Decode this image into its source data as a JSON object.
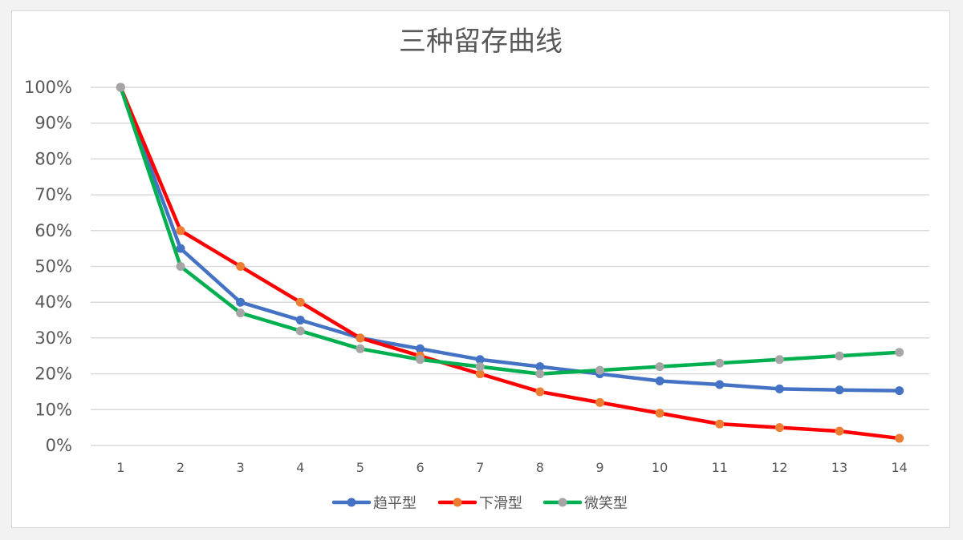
{
  "chart_data": {
    "type": "line",
    "title": "三种留存曲线",
    "xlabel": "",
    "ylabel": "",
    "x": [
      "1",
      "2",
      "3",
      "4",
      "5",
      "6",
      "7",
      "8",
      "9",
      "10",
      "11",
      "12",
      "13",
      "14"
    ],
    "ylim": [
      0,
      1
    ],
    "yticks": [
      "0%",
      "10%",
      "20%",
      "30%",
      "40%",
      "50%",
      "60%",
      "70%",
      "80%",
      "90%",
      "100%"
    ],
    "grid": true,
    "legend": "bottom",
    "series": [
      {
        "name": "趋平型",
        "line_color": "#4472c4",
        "marker_color": "#4472c4",
        "values": [
          1.0,
          0.55,
          0.4,
          0.35,
          0.3,
          0.27,
          0.24,
          0.22,
          0.2,
          0.18,
          0.17,
          0.158,
          0.155,
          0.153
        ]
      },
      {
        "name": "下滑型",
        "line_color": "#ff0000",
        "marker_color": "#ed7d31",
        "values": [
          1.0,
          0.6,
          0.5,
          0.4,
          0.3,
          0.25,
          0.2,
          0.15,
          0.12,
          0.09,
          0.06,
          0.05,
          0.04,
          0.02
        ]
      },
      {
        "name": "微笑型",
        "line_color": "#00b050",
        "marker_color": "#a5a5a5",
        "values": [
          1.0,
          0.5,
          0.37,
          0.32,
          0.27,
          0.24,
          0.22,
          0.2,
          0.21,
          0.22,
          0.23,
          0.24,
          0.25,
          0.26
        ]
      }
    ]
  }
}
